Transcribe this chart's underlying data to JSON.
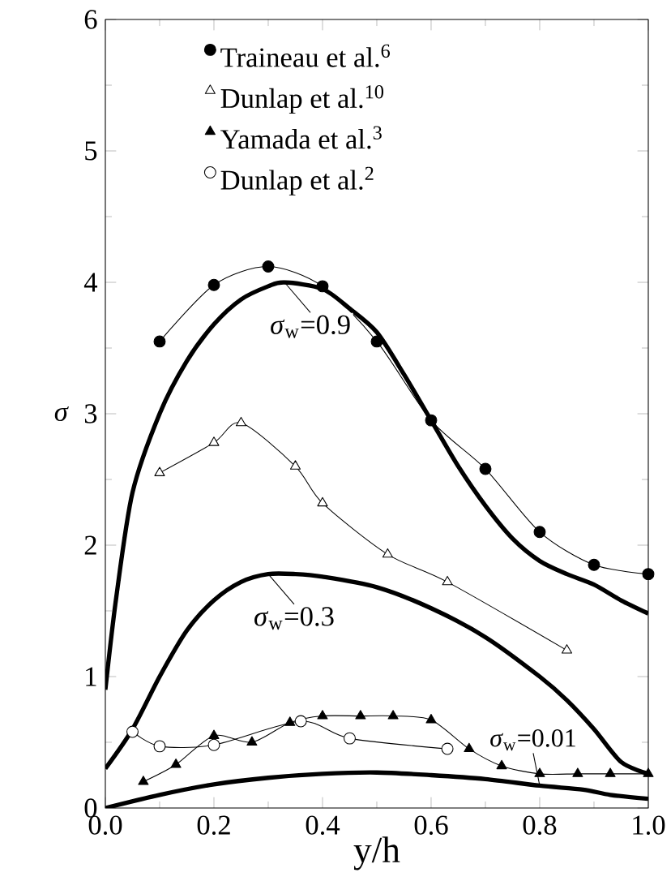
{
  "chart_data": {
    "type": "line",
    "xlabel": "y/h",
    "ylabel": "*σ*",
    "xlim": [
      0,
      1
    ],
    "ylim": [
      0,
      6
    ],
    "xticks": [
      {
        "value": 0,
        "label": "0.0"
      },
      {
        "value": 0.2,
        "label": "0.2"
      },
      {
        "value": 0.4,
        "label": "0.4"
      },
      {
        "value": 0.6,
        "label": "0.6"
      },
      {
        "value": 0.8,
        "label": "0.8"
      },
      {
        "value": 1,
        "label": "1.0"
      }
    ],
    "yticks": [
      0,
      1,
      2,
      3,
      4,
      5,
      6
    ],
    "legend": "top left",
    "series": [
      {
        "name": "Traineau et al.$^{6}$",
        "color": "#000000",
        "marker": "circle",
        "x": [
          0.1,
          0.2,
          0.3,
          0.4,
          0.5,
          0.6,
          0.7,
          0.8,
          0.9,
          1.0
        ],
        "values": [
          3.55,
          3.98,
          4.12,
          3.97,
          3.55,
          2.95,
          2.58,
          2.1,
          1.85,
          1.78
        ]
      },
      {
        "name": "Dunlap et al.$^{10}$",
        "color": "#ffffff",
        "marker": "triangle",
        "x": [
          0.1,
          0.2,
          0.25,
          0.35,
          0.4,
          0.52,
          0.63,
          0.85
        ],
        "values": [
          2.55,
          2.78,
          2.93,
          2.6,
          2.32,
          1.93,
          1.72,
          1.2
        ]
      },
      {
        "name": "Yamada et al.$^{3}$",
        "color": "#000000",
        "marker": "triangle",
        "x": [
          0.07,
          0.13,
          0.2,
          0.27,
          0.34,
          0.4,
          0.47,
          0.53,
          0.6,
          0.67,
          0.73,
          0.8,
          0.87,
          0.93,
          1.0
        ],
        "values": [
          0.2,
          0.33,
          0.55,
          0.5,
          0.65,
          0.7,
          0.7,
          0.7,
          0.67,
          0.45,
          0.32,
          0.26,
          0.26,
          0.26,
          0.26
        ]
      },
      {
        "name": "Dunlap et al.$^{2}$",
        "color": "#ffffff",
        "marker": "circle",
        "x": [
          0.05,
          0.1,
          0.2,
          0.36,
          0.45,
          0.63
        ],
        "values": [
          0.58,
          0.47,
          0.48,
          0.66,
          0.53,
          0.45
        ]
      },
      {
        "name": "*σ*$_{w}$=0.9",
        "color": "#000000",
        "marker": "none",
        "x": [
          0,
          0.02,
          0.05,
          0.1,
          0.15,
          0.2,
          0.25,
          0.3,
          0.33,
          0.4,
          0.45,
          0.5,
          0.55,
          0.6,
          0.65,
          0.7,
          0.75,
          0.8,
          0.85,
          0.9,
          0.95,
          1.0
        ],
        "values": [
          0.9,
          1.6,
          2.4,
          3.0,
          3.4,
          3.68,
          3.87,
          3.97,
          4.0,
          3.95,
          3.8,
          3.62,
          3.3,
          2.95,
          2.6,
          2.3,
          2.05,
          1.88,
          1.78,
          1.7,
          1.58,
          1.48
        ]
      },
      {
        "name": "*σ*$_{w}$=0.3",
        "color": "#000000",
        "marker": "none",
        "x": [
          0,
          0.05,
          0.1,
          0.15,
          0.2,
          0.25,
          0.3,
          0.35,
          0.4,
          0.5,
          0.6,
          0.7,
          0.8,
          0.85,
          0.9,
          0.95,
          1.0
        ],
        "values": [
          0.3,
          0.6,
          1.0,
          1.35,
          1.58,
          1.72,
          1.78,
          1.78,
          1.76,
          1.68,
          1.52,
          1.3,
          1.0,
          0.82,
          0.6,
          0.35,
          0.26
        ]
      },
      {
        "name": "*σ*$_{w}$=0.01",
        "color": "#000000",
        "marker": "none",
        "x": [
          0,
          0.1,
          0.2,
          0.3,
          0.4,
          0.5,
          0.6,
          0.7,
          0.8,
          0.88,
          0.93,
          1.0
        ],
        "values": [
          0,
          0.1,
          0.18,
          0.23,
          0.26,
          0.27,
          0.25,
          0.22,
          0.17,
          0.14,
          0.1,
          0.07
        ]
      }
    ]
  }
}
